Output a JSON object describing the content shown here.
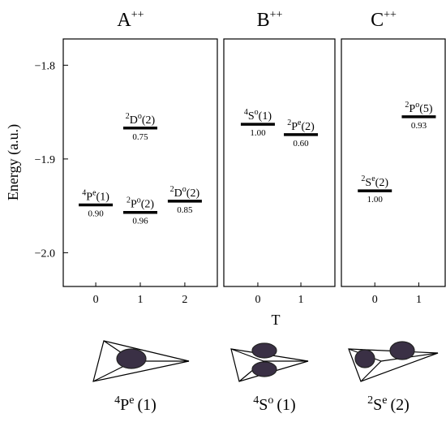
{
  "chart_data": {
    "type": "level",
    "ylabel": "Energy (a.u.)",
    "xlabel": "T",
    "ylim": [
      -2.036,
      -1.772
    ],
    "yticks": [
      {
        "value": -1.8,
        "label": "−1.8"
      },
      {
        "value": -1.9,
        "label": "−1.9"
      },
      {
        "value": -2.0,
        "label": "−2.0"
      }
    ],
    "color": "#000000",
    "panels": [
      {
        "title": "A",
        "title_sup": "++",
        "xlim": [
          -0.73,
          2.73
        ],
        "xticks": [
          0,
          1,
          2
        ],
        "x": [
          0,
          1,
          1,
          2
        ],
        "values": [
          -1.949,
          -1.867,
          -1.957,
          -1.945
        ],
        "terms": [
          {
            "mult": "4",
            "L": "P",
            "parity": "e",
            "n": "(1)"
          },
          {
            "mult": "2",
            "L": "D",
            "parity": "o",
            "n": "(2)"
          },
          {
            "mult": "2",
            "L": "P",
            "parity": "o",
            "n": "(2)"
          },
          {
            "mult": "2",
            "L": "D",
            "parity": "o",
            "n": "(2)"
          }
        ],
        "weights": [
          "0.90",
          "0.75",
          "0.96",
          "0.85"
        ],
        "structure": {
          "mult": "4",
          "L": "P",
          "parity": "e",
          "n": "(1)"
        }
      },
      {
        "title": "B",
        "title_sup": "++",
        "xlim": [
          -0.79,
          1.79
        ],
        "xticks": [
          0,
          1
        ],
        "x": [
          0,
          1
        ],
        "values": [
          -1.863,
          -1.874
        ],
        "terms": [
          {
            "mult": "4",
            "L": "S",
            "parity": "o",
            "n": "(1)"
          },
          {
            "mult": "2",
            "L": "P",
            "parity": "e",
            "n": "(2)"
          }
        ],
        "weights": [
          "1.00",
          "0.60"
        ],
        "structure": {
          "mult": "4",
          "L": "S",
          "parity": "o",
          "n": "(1)"
        }
      },
      {
        "title": "C",
        "title_sup": "++",
        "xlim": [
          -0.76,
          1.6
        ],
        "xticks": [
          0,
          1
        ],
        "x": [
          0,
          1
        ],
        "values": [
          -1.934,
          -1.855
        ],
        "terms": [
          {
            "mult": "2",
            "L": "S",
            "parity": "e",
            "n": "(2)"
          },
          {
            "mult": "2",
            "L": "P",
            "parity": "o",
            "n": "(5)"
          }
        ],
        "weights": [
          "1.00",
          "0.93"
        ],
        "structure": {
          "mult": "2",
          "L": "S",
          "parity": "e",
          "n": "(2)"
        }
      }
    ]
  }
}
